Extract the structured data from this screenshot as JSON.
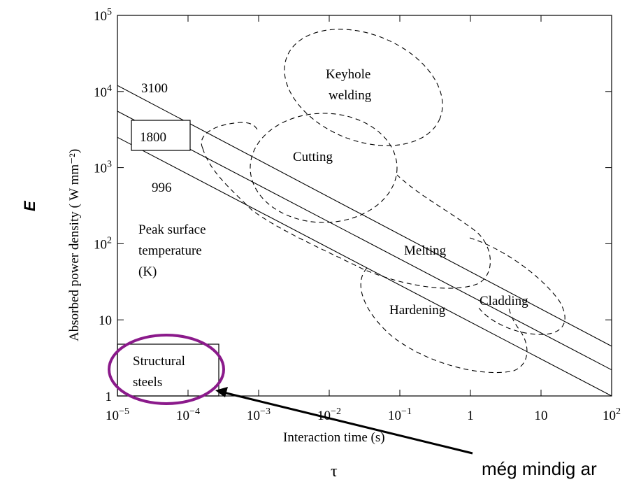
{
  "chart_data": {
    "type": "line",
    "xlabel": "Interaction time (s)",
    "ylabel": "Absorbed power density ( W mm⁻²)",
    "xscale": "log",
    "yscale": "log",
    "xlim": [
      1e-05,
      100
    ],
    "ylim": [
      1,
      100000
    ],
    "x_ticks": [
      {
        "value": 1e-05,
        "base": "10",
        "exp": "−5"
      },
      {
        "value": 0.0001,
        "base": "10",
        "exp": "−4"
      },
      {
        "value": 0.001,
        "base": "10",
        "exp": "−3"
      },
      {
        "value": 0.01,
        "base": "10",
        "exp": "−2"
      },
      {
        "value": 0.1,
        "base": "10",
        "exp": "−1"
      },
      {
        "value": 1,
        "base": "1",
        "exp": ""
      },
      {
        "value": 10,
        "base": "10",
        "exp": ""
      },
      {
        "value": 100,
        "base": "10",
        "exp": "2"
      }
    ],
    "y_ticks": [
      {
        "value": 1,
        "base": "1",
        "exp": ""
      },
      {
        "value": 10,
        "base": "10",
        "exp": ""
      },
      {
        "value": 100,
        "base": "10",
        "exp": "2"
      },
      {
        "value": 1000,
        "base": "10",
        "exp": "3"
      },
      {
        "value": 10000,
        "base": "10",
        "exp": "4"
      },
      {
        "value": 100000,
        "base": "10",
        "exp": "5"
      }
    ],
    "series": [
      {
        "name": "3100",
        "x": [
          1e-05,
          100
        ],
        "y": [
          12000,
          4.5
        ]
      },
      {
        "name": "1800",
        "x": [
          1e-05,
          100
        ],
        "y": [
          5500,
          2.2
        ]
      },
      {
        "name": "996",
        "x": [
          1e-05,
          100
        ],
        "y": [
          2500,
          1.0
        ]
      }
    ],
    "legend_title": [
      "Peak surface",
      "temperature",
      "(K)"
    ],
    "regions": [
      {
        "label": [
          "Keyhole",
          "welding"
        ]
      },
      {
        "label": [
          "Cutting"
        ]
      },
      {
        "label": [
          "Melting"
        ]
      },
      {
        "label": [
          "Cladding"
        ]
      },
      {
        "label": [
          "Hardening"
        ]
      },
      {
        "label": [
          "Structural",
          "steels"
        ]
      }
    ],
    "grid": false
  },
  "annotations": {
    "e_label": "E",
    "tau_label": "τ",
    "note_text": "még mindig ar"
  },
  "colors": {
    "highlight": "#8b1a8b",
    "line": "#000000"
  }
}
